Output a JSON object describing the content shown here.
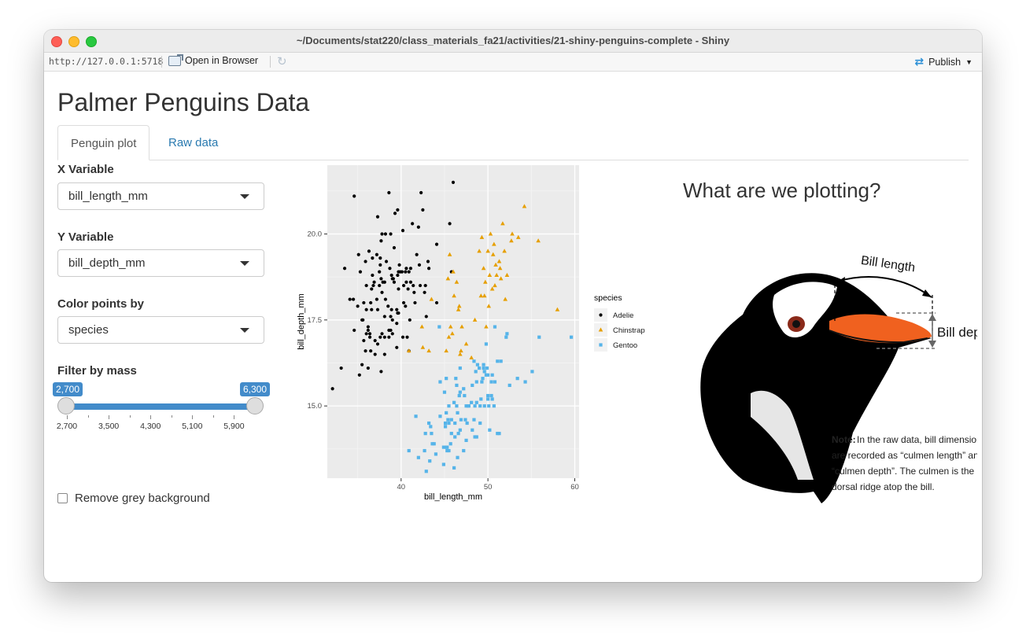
{
  "window": {
    "title": "~/Documents/stat220/class_materials_fa21/activities/21-shiny-penguins-complete - Shiny"
  },
  "toolbar": {
    "url": "http://127.0.0.1:5718",
    "open_browser": "Open in Browser",
    "publish": "Publish"
  },
  "app": {
    "title": "Palmer Penguins Data",
    "tabs": [
      {
        "label": "Penguin plot",
        "active": true
      },
      {
        "label": "Raw data",
        "active": false
      }
    ]
  },
  "sidebar": {
    "x_label": "X Variable",
    "x_value": "bill_length_mm",
    "y_label": "Y Variable",
    "y_value": "bill_depth_mm",
    "color_label": "Color points by",
    "color_value": "species",
    "mass_label": "Filter by mass",
    "slider": {
      "min": 2700,
      "max": 6300,
      "low": 2700,
      "high": 6300,
      "low_label": "2,700",
      "high_label": "6,300",
      "ticks": [
        "2,700",
        "3,500",
        "4,300",
        "5,100",
        "5,900"
      ]
    },
    "checkbox_label": "Remove grey background"
  },
  "figure": {
    "title": "What are we plotting?"
  },
  "illustration": {
    "bill_length": "Bill length",
    "bill_depth": "Bill depth",
    "note_bold": "Note:",
    "note_lines": [
      "In the raw data, bill dimensions",
      "are recorded as “culmen length” and",
      "“culmen depth”. The culmen is the",
      "dorsal ridge atop the bill."
    ]
  },
  "chart_data": {
    "type": "scatter",
    "xlabel": "bill_length_mm",
    "ylabel": "bill_depth_mm",
    "xlim": [
      31.5,
      60.5
    ],
    "ylim": [
      12.9,
      22.0
    ],
    "xticks": [
      40,
      50,
      60
    ],
    "yticks": [
      15.0,
      17.5,
      20.0
    ],
    "tick_labels": {
      "x": [
        "40",
        "50",
        "60"
      ],
      "y": [
        "15.0",
        "17.5",
        "20.0"
      ]
    },
    "grid": true,
    "legend": {
      "title": "species",
      "placement": "right"
    },
    "series": [
      {
        "name": "Adelie",
        "color": "#000000",
        "shape": "circle",
        "points": [
          [
            32.1,
            15.5
          ],
          [
            33.1,
            16.1
          ],
          [
            33.5,
            19.0
          ],
          [
            34.1,
            18.1
          ],
          [
            34.5,
            18.1
          ],
          [
            34.6,
            21.1
          ],
          [
            34.6,
            17.2
          ],
          [
            35.0,
            17.9
          ],
          [
            35.1,
            19.4
          ],
          [
            35.2,
            15.9
          ],
          [
            35.3,
            18.9
          ],
          [
            35.5,
            17.5
          ],
          [
            35.5,
            16.2
          ],
          [
            35.6,
            17.5
          ],
          [
            35.7,
            16.9
          ],
          [
            35.7,
            18.0
          ],
          [
            35.9,
            19.2
          ],
          [
            35.9,
            16.6
          ],
          [
            36.0,
            17.1
          ],
          [
            36.0,
            18.5
          ],
          [
            36.0,
            17.8
          ],
          [
            36.2,
            17.3
          ],
          [
            36.2,
            16.1
          ],
          [
            36.2,
            17.2
          ],
          [
            36.3,
            19.5
          ],
          [
            36.4,
            17.0
          ],
          [
            36.4,
            17.1
          ],
          [
            36.5,
            16.6
          ],
          [
            36.5,
            18.0
          ],
          [
            36.6,
            17.8
          ],
          [
            36.6,
            18.4
          ],
          [
            36.7,
            18.8
          ],
          [
            36.7,
            19.3
          ],
          [
            36.8,
            18.5
          ],
          [
            36.9,
            18.6
          ],
          [
            37.0,
            16.9
          ],
          [
            37.0,
            16.5
          ],
          [
            37.2,
            18.1
          ],
          [
            37.2,
            19.4
          ],
          [
            37.3,
            20.5
          ],
          [
            37.3,
            17.8
          ],
          [
            37.3,
            16.8
          ],
          [
            37.5,
            18.9
          ],
          [
            37.5,
            18.5
          ],
          [
            37.6,
            19.1
          ],
          [
            37.6,
            17.0
          ],
          [
            37.6,
            19.3
          ],
          [
            37.7,
            18.7
          ],
          [
            37.7,
            16.0
          ],
          [
            37.7,
            19.8
          ],
          [
            37.8,
            17.1
          ],
          [
            37.8,
            18.3
          ],
          [
            37.8,
            20.0
          ],
          [
            37.9,
            18.6
          ],
          [
            38.1,
            18.6
          ],
          [
            38.1,
            17.0
          ],
          [
            38.1,
            16.5
          ],
          [
            38.1,
            17.6
          ],
          [
            38.2,
            18.1
          ],
          [
            38.2,
            20.0
          ],
          [
            38.3,
            19.2
          ],
          [
            38.5,
            17.9
          ],
          [
            38.6,
            21.2
          ],
          [
            38.6,
            17.2
          ],
          [
            38.6,
            17.0
          ],
          [
            38.7,
            19.0
          ],
          [
            38.8,
            17.2
          ],
          [
            38.8,
            20.0
          ],
          [
            38.8,
            17.6
          ],
          [
            38.9,
            17.8
          ],
          [
            38.9,
            18.8
          ],
          [
            39.0,
            18.7
          ],
          [
            39.0,
            17.5
          ],
          [
            39.0,
            17.1
          ],
          [
            39.1,
            18.7
          ],
          [
            39.2,
            19.6
          ],
          [
            39.2,
            18.6
          ],
          [
            39.3,
            20.6
          ],
          [
            39.5,
            17.4
          ],
          [
            39.5,
            16.7
          ],
          [
            39.5,
            17.8
          ],
          [
            39.6,
            17.7
          ],
          [
            39.6,
            18.8
          ],
          [
            39.6,
            20.7
          ],
          [
            39.7,
            18.4
          ],
          [
            39.7,
            17.7
          ],
          [
            39.7,
            18.9
          ],
          [
            39.8,
            19.1
          ],
          [
            39.9,
            18.9
          ],
          [
            40.1,
            18.9
          ],
          [
            40.2,
            17.0
          ],
          [
            40.2,
            20.1
          ],
          [
            40.3,
            18.0
          ],
          [
            40.3,
            18.5
          ],
          [
            40.5,
            17.9
          ],
          [
            40.5,
            18.9
          ],
          [
            40.6,
            18.6
          ],
          [
            40.6,
            19.0
          ],
          [
            40.7,
            17.0
          ],
          [
            40.8,
            18.4
          ],
          [
            40.9,
            18.9
          ],
          [
            40.9,
            16.6
          ],
          [
            41.0,
            17.5
          ],
          [
            41.1,
            18.6
          ],
          [
            41.1,
            19.0
          ],
          [
            41.3,
            20.3
          ],
          [
            41.4,
            18.5
          ],
          [
            41.5,
            18.3
          ],
          [
            41.6,
            18.0
          ],
          [
            41.8,
            19.4
          ],
          [
            42.0,
            20.2
          ],
          [
            42.1,
            19.1
          ],
          [
            42.2,
            18.5
          ],
          [
            42.3,
            21.2
          ],
          [
            42.5,
            20.7
          ],
          [
            42.7,
            18.3
          ],
          [
            42.8,
            18.5
          ],
          [
            42.9,
            17.6
          ],
          [
            43.1,
            19.2
          ],
          [
            43.2,
            19.0
          ],
          [
            44.1,
            19.7
          ],
          [
            44.1,
            18.0
          ],
          [
            45.6,
            20.3
          ],
          [
            45.8,
            18.9
          ],
          [
            46.0,
            21.5
          ]
        ]
      },
      {
        "name": "Chinstrap",
        "color": "#E69F00",
        "shape": "triangle",
        "points": [
          [
            40.9,
            16.6
          ],
          [
            42.4,
            17.3
          ],
          [
            42.5,
            16.7
          ],
          [
            43.2,
            16.6
          ],
          [
            43.5,
            18.1
          ],
          [
            45.2,
            16.6
          ],
          [
            45.4,
            18.7
          ],
          [
            45.5,
            17.0
          ],
          [
            45.6,
            19.4
          ],
          [
            45.7,
            17.3
          ],
          [
            45.9,
            17.1
          ],
          [
            46.0,
            18.9
          ],
          [
            46.1,
            18.2
          ],
          [
            46.4,
            18.6
          ],
          [
            46.6,
            17.8
          ],
          [
            46.7,
            17.9
          ],
          [
            46.8,
            16.5
          ],
          [
            46.9,
            16.6
          ],
          [
            47.0,
            17.3
          ],
          [
            47.5,
            16.8
          ],
          [
            48.1,
            16.4
          ],
          [
            48.5,
            17.5
          ],
          [
            49.0,
            19.5
          ],
          [
            49.2,
            18.2
          ],
          [
            49.3,
            19.9
          ],
          [
            49.5,
            19.0
          ],
          [
            49.6,
            18.2
          ],
          [
            49.7,
            18.6
          ],
          [
            49.8,
            17.3
          ],
          [
            50.0,
            19.5
          ],
          [
            50.1,
            17.9
          ],
          [
            50.2,
            18.8
          ],
          [
            50.3,
            20.0
          ],
          [
            50.5,
            18.4
          ],
          [
            50.6,
            19.4
          ],
          [
            50.7,
            19.7
          ],
          [
            50.8,
            18.5
          ],
          [
            50.9,
            19.1
          ],
          [
            51.0,
            18.8
          ],
          [
            51.3,
            19.2
          ],
          [
            51.4,
            19.0
          ],
          [
            51.5,
            18.7
          ],
          [
            51.7,
            20.3
          ],
          [
            51.9,
            19.5
          ],
          [
            52.0,
            18.1
          ],
          [
            52.2,
            18.8
          ],
          [
            52.7,
            19.8
          ],
          [
            52.8,
            20.0
          ],
          [
            53.5,
            19.9
          ],
          [
            54.2,
            20.8
          ],
          [
            55.8,
            19.8
          ],
          [
            58.0,
            17.8
          ]
        ]
      },
      {
        "name": "Gentoo",
        "color": "#56B4E9",
        "shape": "square",
        "points": [
          [
            40.9,
            13.7
          ],
          [
            41.7,
            14.7
          ],
          [
            42.0,
            13.5
          ],
          [
            42.7,
            13.7
          ],
          [
            42.8,
            14.2
          ],
          [
            42.9,
            13.1
          ],
          [
            43.2,
            14.5
          ],
          [
            43.3,
            13.4
          ],
          [
            43.4,
            14.4
          ],
          [
            43.5,
            14.2
          ],
          [
            43.6,
            13.9
          ],
          [
            43.8,
            13.9
          ],
          [
            44.0,
            13.6
          ],
          [
            44.4,
            17.3
          ],
          [
            44.5,
            14.7
          ],
          [
            44.5,
            15.7
          ],
          [
            44.9,
            13.8
          ],
          [
            44.9,
            13.3
          ],
          [
            45.0,
            15.4
          ],
          [
            45.1,
            14.5
          ],
          [
            45.1,
            14.4
          ],
          [
            45.2,
            13.8
          ],
          [
            45.2,
            14.8
          ],
          [
            45.2,
            15.8
          ],
          [
            45.3,
            13.7
          ],
          [
            45.3,
            13.8
          ],
          [
            45.4,
            14.6
          ],
          [
            45.5,
            13.7
          ],
          [
            45.5,
            14.5
          ],
          [
            45.5,
            15.0
          ],
          [
            45.7,
            13.9
          ],
          [
            45.8,
            14.6
          ],
          [
            45.8,
            14.2
          ],
          [
            46.1,
            13.2
          ],
          [
            46.1,
            15.1
          ],
          [
            46.2,
            14.5
          ],
          [
            46.2,
            14.1
          ],
          [
            46.3,
            15.8
          ],
          [
            46.4,
            15.0
          ],
          [
            46.4,
            15.6
          ],
          [
            46.5,
            13.5
          ],
          [
            46.5,
            14.8
          ],
          [
            46.6,
            14.2
          ],
          [
            46.7,
            15.3
          ],
          [
            46.8,
            14.3
          ],
          [
            46.8,
            15.4
          ],
          [
            46.8,
            16.1
          ],
          [
            46.9,
            14.6
          ],
          [
            47.2,
            13.7
          ],
          [
            47.2,
            15.5
          ],
          [
            47.3,
            15.3
          ],
          [
            47.4,
            14.6
          ],
          [
            47.5,
            14.0
          ],
          [
            47.5,
            15.0
          ],
          [
            47.6,
            14.5
          ],
          [
            47.7,
            15.0
          ],
          [
            47.8,
            15.0
          ],
          [
            48.1,
            15.1
          ],
          [
            48.2,
            14.3
          ],
          [
            48.2,
            15.6
          ],
          [
            48.4,
            14.6
          ],
          [
            48.4,
            16.3
          ],
          [
            48.5,
            14.1
          ],
          [
            48.5,
            15.0
          ],
          [
            48.6,
            16.0
          ],
          [
            48.7,
            14.1
          ],
          [
            48.7,
            15.1
          ],
          [
            48.7,
            15.7
          ],
          [
            48.8,
            16.2
          ],
          [
            49.0,
            16.1
          ],
          [
            49.1,
            14.5
          ],
          [
            49.1,
            15.0
          ],
          [
            49.2,
            15.2
          ],
          [
            49.3,
            15.7
          ],
          [
            49.4,
            15.8
          ],
          [
            49.5,
            16.1
          ],
          [
            49.5,
            16.2
          ],
          [
            49.6,
            15.0
          ],
          [
            49.6,
            16.0
          ],
          [
            49.8,
            15.9
          ],
          [
            49.8,
            16.8
          ],
          [
            49.9,
            16.1
          ],
          [
            50.0,
            15.2
          ],
          [
            50.0,
            15.3
          ],
          [
            50.0,
            15.9
          ],
          [
            50.1,
            15.0
          ],
          [
            50.2,
            14.3
          ],
          [
            50.4,
            15.3
          ],
          [
            50.4,
            15.7
          ],
          [
            50.5,
            15.2
          ],
          [
            50.5,
            15.9
          ],
          [
            50.7,
            15.0
          ],
          [
            50.8,
            15.7
          ],
          [
            50.8,
            17.3
          ],
          [
            51.1,
            14.2
          ],
          [
            51.1,
            16.3
          ],
          [
            51.3,
            14.2
          ],
          [
            51.5,
            16.3
          ],
          [
            52.1,
            17.0
          ],
          [
            52.2,
            17.1
          ],
          [
            52.5,
            15.6
          ],
          [
            53.4,
            15.8
          ],
          [
            54.3,
            15.7
          ],
          [
            55.1,
            16.0
          ],
          [
            55.9,
            17.0
          ],
          [
            59.6,
            17.0
          ]
        ]
      }
    ]
  }
}
